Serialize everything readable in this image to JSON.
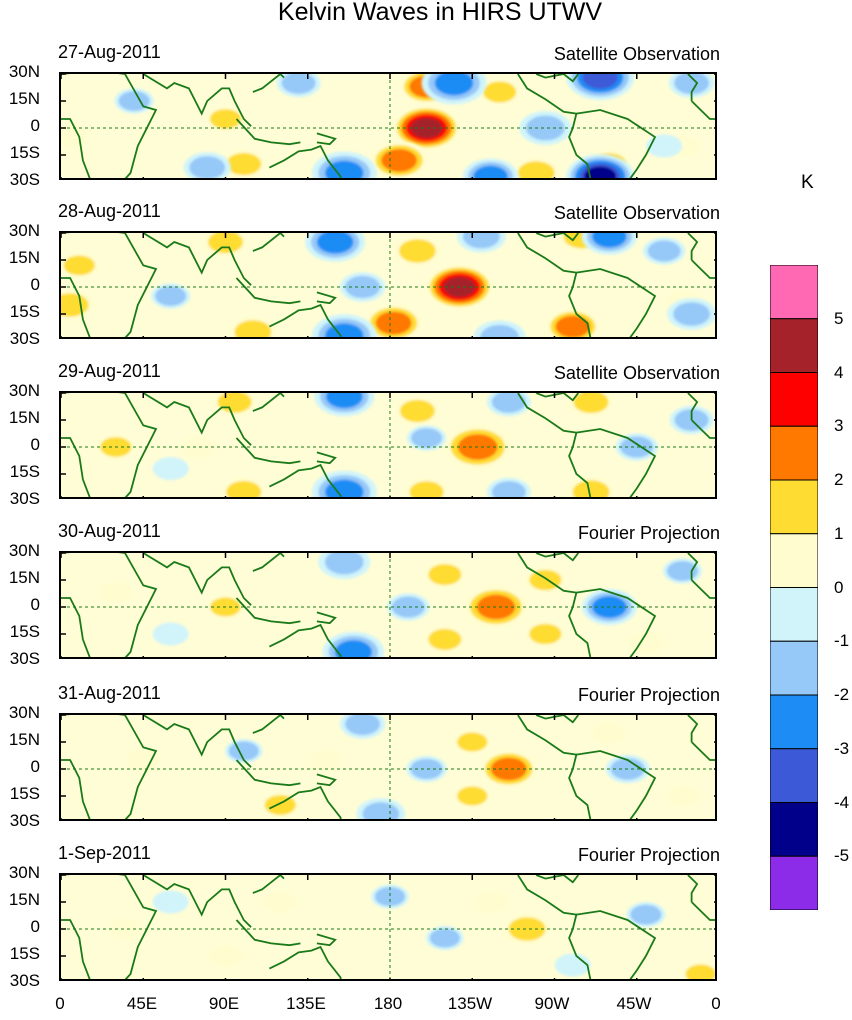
{
  "chart_data": {
    "type": "heatmap",
    "title": "Kelvin Waves in HIRS UTWV",
    "x_ticks": [
      "0",
      "45E",
      "90E",
      "135E",
      "180",
      "135W",
      "90W",
      "45W",
      "0"
    ],
    "y_ticks": [
      "30N",
      "15N",
      "0",
      "15S",
      "30S"
    ],
    "xlim": [
      0,
      360
    ],
    "ylim": [
      -30,
      30
    ],
    "colorbar": {
      "unit": "K",
      "levels": [
        -5,
        -4,
        -3,
        -2,
        -1,
        0,
        1,
        2,
        3,
        4,
        5
      ],
      "colors": [
        "#8c2ce8",
        "#00008b",
        "#3c5ad7",
        "#1e8cf5",
        "#96c8f8",
        "#d0f4fa",
        "#fffdd0",
        "#ffdc32",
        "#ff7800",
        "#ff0000",
        "#a5222a",
        "#ff69b4"
      ]
    },
    "panels": [
      {
        "date": "27-Aug-2011",
        "source": "Satellite Observation",
        "blobs": [
          {
            "lon": 200,
            "lat": 0,
            "value": 4.5
          },
          {
            "lon": 185,
            "lat": -18,
            "value": 2.4
          },
          {
            "lon": 200,
            "lat": 23,
            "value": 2.2
          },
          {
            "lon": 100,
            "lat": -20,
            "value": 1.6
          },
          {
            "lon": 240,
            "lat": 20,
            "value": 1.4
          },
          {
            "lon": 290,
            "lat": 25,
            "value": 1.8
          },
          {
            "lon": 260,
            "lat": -25,
            "value": 1.8
          },
          {
            "lon": 300,
            "lat": -20,
            "value": 1.5
          },
          {
            "lon": 90,
            "lat": 5,
            "value": 1.2
          },
          {
            "lon": 5,
            "lat": -5,
            "value": 1.0
          },
          {
            "lon": 340,
            "lat": -10,
            "value": 1.0
          },
          {
            "lon": 215,
            "lat": 25,
            "value": -2.8
          },
          {
            "lon": 295,
            "lat": 28,
            "value": -3.5
          },
          {
            "lon": 295,
            "lat": -27,
            "value": -4.2
          },
          {
            "lon": 155,
            "lat": -25,
            "value": -2.8
          },
          {
            "lon": 235,
            "lat": -27,
            "value": -2.2
          },
          {
            "lon": 80,
            "lat": -22,
            "value": -1.7
          },
          {
            "lon": 130,
            "lat": 25,
            "value": -1.5
          },
          {
            "lon": 265,
            "lat": 0,
            "value": -2.0
          },
          {
            "lon": 345,
            "lat": 25,
            "value": -1.6
          },
          {
            "lon": 40,
            "lat": 15,
            "value": -1.2
          },
          {
            "lon": 330,
            "lat": -10,
            "value": -1.0
          }
        ]
      },
      {
        "date": "28-Aug-2011",
        "source": "Satellite Observation",
        "blobs": [
          {
            "lon": 218,
            "lat": 0,
            "value": 4.5
          },
          {
            "lon": 182,
            "lat": -20,
            "value": 2.4
          },
          {
            "lon": 195,
            "lat": 20,
            "value": 1.8
          },
          {
            "lon": 105,
            "lat": -25,
            "value": 1.8
          },
          {
            "lon": 90,
            "lat": 25,
            "value": 1.6
          },
          {
            "lon": 285,
            "lat": 28,
            "value": 1.8
          },
          {
            "lon": 280,
            "lat": -22,
            "value": 2.2
          },
          {
            "lon": 5,
            "lat": -10,
            "value": 1.8
          },
          {
            "lon": 10,
            "lat": 12,
            "value": 1.2
          },
          {
            "lon": 340,
            "lat": -8,
            "value": 1.0
          },
          {
            "lon": 150,
            "lat": 25,
            "value": -2.5
          },
          {
            "lon": 155,
            "lat": -27,
            "value": -2.8
          },
          {
            "lon": 230,
            "lat": 28,
            "value": -1.8
          },
          {
            "lon": 240,
            "lat": -28,
            "value": -2.0
          },
          {
            "lon": 300,
            "lat": 28,
            "value": -2.2
          },
          {
            "lon": 60,
            "lat": -5,
            "value": -1.2
          },
          {
            "lon": 165,
            "lat": 0,
            "value": -1.6
          },
          {
            "lon": 330,
            "lat": 20,
            "value": -1.4
          },
          {
            "lon": 345,
            "lat": -15,
            "value": -1.8
          }
        ]
      },
      {
        "date": "29-Aug-2011",
        "source": "Satellite Observation",
        "blobs": [
          {
            "lon": 228,
            "lat": 0,
            "value": 3.0
          },
          {
            "lon": 195,
            "lat": 20,
            "value": 1.6
          },
          {
            "lon": 200,
            "lat": -25,
            "value": 1.5
          },
          {
            "lon": 100,
            "lat": -25,
            "value": 1.6
          },
          {
            "lon": 95,
            "lat": 25,
            "value": 1.5
          },
          {
            "lon": 290,
            "lat": 25,
            "value": 1.6
          },
          {
            "lon": 290,
            "lat": -25,
            "value": 1.8
          },
          {
            "lon": 30,
            "lat": 0,
            "value": 1.2
          },
          {
            "lon": 75,
            "lat": 0,
            "value": 1.0
          },
          {
            "lon": 155,
            "lat": 28,
            "value": -2.5
          },
          {
            "lon": 155,
            "lat": -25,
            "value": -2.8
          },
          {
            "lon": 245,
            "lat": 25,
            "value": -1.5
          },
          {
            "lon": 245,
            "lat": -25,
            "value": -1.5
          },
          {
            "lon": 200,
            "lat": 5,
            "value": -1.2
          },
          {
            "lon": 315,
            "lat": 0,
            "value": -1.4
          },
          {
            "lon": 345,
            "lat": 15,
            "value": -1.5
          },
          {
            "lon": 60,
            "lat": -12,
            "value": -1.0
          }
        ]
      },
      {
        "date": "30-Aug-2011",
        "source": "Fourier Projection",
        "blobs": [
          {
            "lon": 238,
            "lat": 0,
            "value": 2.8
          },
          {
            "lon": 210,
            "lat": 18,
            "value": 1.4
          },
          {
            "lon": 210,
            "lat": -18,
            "value": 1.4
          },
          {
            "lon": 265,
            "lat": 15,
            "value": 1.3
          },
          {
            "lon": 265,
            "lat": -15,
            "value": 1.3
          },
          {
            "lon": 90,
            "lat": 0,
            "value": 1.1
          },
          {
            "lon": 30,
            "lat": 8,
            "value": 1.0
          },
          {
            "lon": 320,
            "lat": -20,
            "value": 1.0
          },
          {
            "lon": 155,
            "lat": 25,
            "value": -2.0
          },
          {
            "lon": 160,
            "lat": -25,
            "value": -2.6
          },
          {
            "lon": 190,
            "lat": 0,
            "value": -1.4
          },
          {
            "lon": 300,
            "lat": 0,
            "value": -2.2
          },
          {
            "lon": 340,
            "lat": 20,
            "value": -1.2
          },
          {
            "lon": 60,
            "lat": -15,
            "value": -1.0
          }
        ]
      },
      {
        "date": "31-Aug-2011",
        "source": "Fourier Projection",
        "blobs": [
          {
            "lon": 245,
            "lat": 0,
            "value": 2.4
          },
          {
            "lon": 225,
            "lat": 15,
            "value": 1.1
          },
          {
            "lon": 225,
            "lat": -15,
            "value": 1.1
          },
          {
            "lon": 145,
            "lat": 5,
            "value": 1.0
          },
          {
            "lon": 120,
            "lat": -20,
            "value": 1.2
          },
          {
            "lon": 300,
            "lat": 20,
            "value": 1.0
          },
          {
            "lon": 340,
            "lat": -15,
            "value": 1.0
          },
          {
            "lon": 45,
            "lat": 5,
            "value": 1.0
          },
          {
            "lon": 165,
            "lat": 25,
            "value": -1.6
          },
          {
            "lon": 175,
            "lat": -25,
            "value": -1.8
          },
          {
            "lon": 200,
            "lat": 0,
            "value": -1.3
          },
          {
            "lon": 310,
            "lat": 0,
            "value": -1.5
          },
          {
            "lon": 100,
            "lat": 10,
            "value": -1.1
          }
        ]
      },
      {
        "date": "1-Sep-2011",
        "source": "Fourier Projection",
        "blobs": [
          {
            "lon": 255,
            "lat": 0,
            "value": 1.8
          },
          {
            "lon": 235,
            "lat": 15,
            "value": 1.0
          },
          {
            "lon": 120,
            "lat": 15,
            "value": 1.0
          },
          {
            "lon": 90,
            "lat": -15,
            "value": 1.0
          },
          {
            "lon": 350,
            "lat": -25,
            "value": 1.1
          },
          {
            "lon": 35,
            "lat": 0,
            "value": 0.9
          },
          {
            "lon": 180,
            "lat": 18,
            "value": -1.1
          },
          {
            "lon": 210,
            "lat": -5,
            "value": -1.1
          },
          {
            "lon": 320,
            "lat": 8,
            "value": -1.2
          },
          {
            "lon": 60,
            "lat": 15,
            "value": -1.0
          },
          {
            "lon": 280,
            "lat": -20,
            "value": -1.0
          }
        ]
      }
    ]
  }
}
